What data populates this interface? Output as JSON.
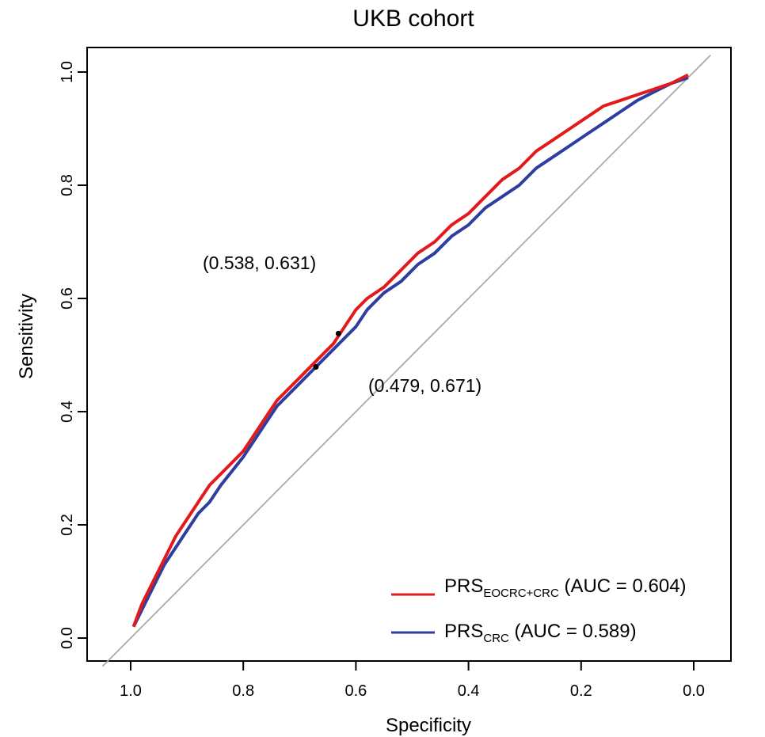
{
  "chart_data": {
    "type": "line",
    "title": "UKB cohort",
    "xlabel": "Specificity",
    "ylabel": "Sensitivity",
    "x_reversed": true,
    "xlim": [
      1.0,
      0.0
    ],
    "ylim": [
      0.0,
      1.0
    ],
    "x_ticks": [
      "1.0",
      "0.8",
      "0.6",
      "0.4",
      "0.2",
      "0.0"
    ],
    "y_ticks": [
      "0.0",
      "0.2",
      "0.4",
      "0.6",
      "0.8",
      "1.0"
    ],
    "grid": false,
    "legend_position": "bottom-right",
    "reference_line": {
      "from": [
        1.0,
        0.0
      ],
      "to": [
        0.0,
        1.0
      ],
      "color": "#aaaaaa"
    },
    "series": [
      {
        "name": "PRS",
        "subscript": "EOCRC+CRC",
        "suffix": " (AUC = 0.604)",
        "color": "#e31a1c",
        "x": [
          0.995,
          0.98,
          0.96,
          0.94,
          0.92,
          0.9,
          0.88,
          0.86,
          0.84,
          0.8,
          0.78,
          0.76,
          0.74,
          0.72,
          0.7,
          0.68,
          0.66,
          0.64,
          0.62,
          0.6,
          0.58,
          0.55,
          0.52,
          0.49,
          0.46,
          0.43,
          0.4,
          0.37,
          0.34,
          0.31,
          0.28,
          0.25,
          0.22,
          0.19,
          0.16,
          0.13,
          0.1,
          0.07,
          0.04,
          0.01
        ],
        "y": [
          0.02,
          0.06,
          0.1,
          0.14,
          0.18,
          0.21,
          0.24,
          0.27,
          0.29,
          0.33,
          0.36,
          0.39,
          0.42,
          0.44,
          0.46,
          0.48,
          0.5,
          0.52,
          0.55,
          0.58,
          0.6,
          0.62,
          0.65,
          0.68,
          0.7,
          0.73,
          0.75,
          0.78,
          0.81,
          0.83,
          0.86,
          0.88,
          0.9,
          0.92,
          0.94,
          0.95,
          0.96,
          0.97,
          0.98,
          0.995
        ]
      },
      {
        "name": "PRS",
        "subscript": "CRC",
        "suffix": " (AUC = 0.589)",
        "color": "#2e3ea0",
        "x": [
          0.995,
          0.98,
          0.96,
          0.94,
          0.92,
          0.9,
          0.88,
          0.86,
          0.84,
          0.8,
          0.78,
          0.76,
          0.74,
          0.72,
          0.7,
          0.68,
          0.66,
          0.64,
          0.62,
          0.6,
          0.58,
          0.55,
          0.52,
          0.49,
          0.46,
          0.43,
          0.4,
          0.37,
          0.34,
          0.31,
          0.28,
          0.25,
          0.22,
          0.19,
          0.16,
          0.13,
          0.1,
          0.07,
          0.04,
          0.01
        ],
        "y": [
          0.02,
          0.05,
          0.09,
          0.13,
          0.16,
          0.19,
          0.22,
          0.24,
          0.27,
          0.32,
          0.35,
          0.38,
          0.41,
          0.43,
          0.45,
          0.47,
          0.49,
          0.51,
          0.53,
          0.55,
          0.58,
          0.61,
          0.63,
          0.66,
          0.68,
          0.71,
          0.73,
          0.76,
          0.78,
          0.8,
          0.83,
          0.85,
          0.87,
          0.89,
          0.91,
          0.93,
          0.95,
          0.965,
          0.98,
          0.99
        ]
      }
    ],
    "points": [
      {
        "x": 0.631,
        "y": 0.538,
        "color": "#000000"
      },
      {
        "x": 0.671,
        "y": 0.479,
        "color": "#000000"
      }
    ],
    "annotations": [
      "(0.538, 0.631)",
      "(0.479, 0.671)"
    ]
  }
}
